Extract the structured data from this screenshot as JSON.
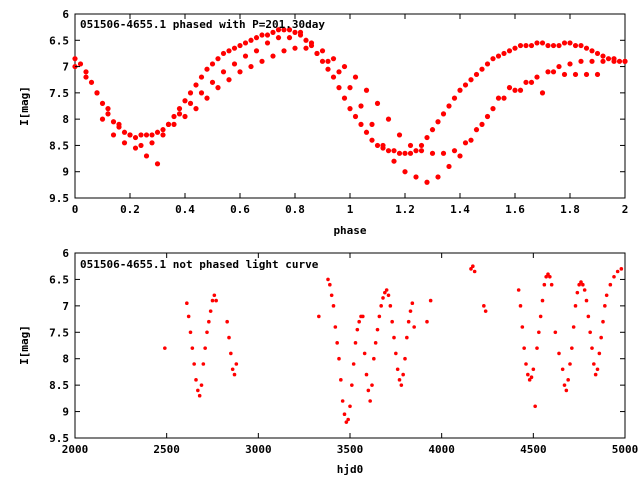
{
  "chart_data": [
    {
      "type": "scatter",
      "title": "051506-4655.1 phased with P=201.30day",
      "xlabel": "phase",
      "ylabel": "I[mag]",
      "xlim": [
        0,
        2
      ],
      "ylim": [
        9.5,
        6
      ],
      "y_inverted": true,
      "xticks": [
        "0",
        "0.2",
        "0.4",
        "0.6",
        "0.8",
        "1",
        "1.2",
        "1.4",
        "1.6",
        "1.8",
        "2"
      ],
      "xtick_values": [
        0,
        0.2,
        0.4,
        0.6,
        0.8,
        1,
        1.2,
        1.4,
        1.6,
        1.8,
        2
      ],
      "yticks": [
        "6",
        "6.5",
        "7",
        "7.5",
        "8",
        "8.5",
        "9",
        "9.5"
      ],
      "ytick_values": [
        6,
        6.5,
        7,
        7.5,
        8,
        8.5,
        9,
        9.5
      ],
      "marker_color": "#ff0000",
      "series": [
        {
          "x": [
            0.0,
            0.02,
            0.04,
            0.06,
            0.08,
            0.1,
            0.12,
            0.14,
            0.16,
            0.18,
            0.2,
            0.22,
            0.24,
            0.26,
            0.28,
            0.3,
            0.32,
            0.34,
            0.36,
            0.38,
            0.4,
            0.42,
            0.44,
            0.46,
            0.48,
            0.5,
            0.52,
            0.54,
            0.56,
            0.58,
            0.6,
            0.62,
            0.64,
            0.66,
            0.68,
            0.7,
            0.72,
            0.74,
            0.76,
            0.78,
            0.8,
            0.82,
            0.84,
            0.86,
            0.88,
            0.9,
            0.92,
            0.94,
            0.96,
            0.98,
            1.0,
            1.02,
            1.04,
            1.06,
            1.08,
            1.1,
            1.12,
            1.14,
            1.16,
            1.18,
            1.2,
            1.22,
            1.24,
            1.26,
            1.28,
            1.3,
            1.32,
            1.34,
            1.36,
            1.38,
            1.4,
            1.42,
            1.44,
            1.46,
            1.48,
            1.5,
            1.52,
            1.54,
            1.56,
            1.58,
            1.6,
            1.62,
            1.64,
            1.66,
            1.68,
            1.7,
            1.72,
            1.74,
            1.76,
            1.78,
            1.8,
            1.82,
            1.84,
            1.86,
            1.88,
            1.9,
            1.92,
            1.94,
            1.96,
            1.98,
            2.0
          ],
          "y": [
            6.85,
            6.95,
            7.1,
            7.3,
            7.5,
            7.7,
            7.9,
            8.05,
            8.15,
            8.25,
            8.3,
            8.35,
            8.3,
            8.3,
            8.3,
            8.25,
            8.2,
            8.1,
            7.95,
            7.8,
            7.65,
            7.5,
            7.35,
            7.2,
            7.05,
            6.95,
            6.85,
            6.75,
            6.7,
            6.65,
            6.6,
            6.55,
            6.5,
            6.45,
            6.4,
            6.4,
            6.35,
            6.3,
            6.3,
            6.3,
            6.35,
            6.4,
            6.5,
            6.6,
            6.75,
            6.9,
            7.05,
            7.2,
            7.4,
            7.6,
            7.8,
            7.95,
            8.1,
            8.25,
            8.4,
            8.5,
            8.55,
            8.6,
            8.6,
            8.65,
            8.65,
            8.65,
            8.6,
            8.5,
            8.35,
            8.2,
            8.05,
            7.9,
            7.75,
            7.6,
            7.45,
            7.35,
            7.25,
            7.15,
            7.05,
            6.95,
            6.85,
            6.8,
            6.75,
            6.7,
            6.65,
            6.6,
            6.6,
            6.6,
            6.55,
            6.55,
            6.6,
            6.6,
            6.6,
            6.55,
            6.55,
            6.6,
            6.6,
            6.65,
            6.7,
            6.75,
            6.8,
            6.85,
            6.85,
            6.9,
            6.9
          ]
        },
        {
          "x": [
            0.0,
            0.04,
            0.08,
            0.12,
            0.16,
            0.2,
            0.24,
            0.28,
            0.32,
            0.36,
            0.4,
            0.44,
            0.48,
            0.52,
            0.56,
            0.6,
            0.64,
            0.68,
            0.72,
            0.76,
            0.8,
            0.84,
            0.88,
            0.92,
            0.96,
            1.0,
            1.04,
            1.08,
            1.12,
            1.16,
            1.2,
            1.24,
            1.28,
            1.32,
            1.36,
            1.4,
            1.44,
            1.48,
            1.52,
            1.56,
            1.6,
            1.64,
            1.68,
            1.72,
            1.76,
            1.8,
            1.84,
            1.88,
            1.92,
            1.96,
            2.0
          ],
          "y": [
            7.0,
            7.2,
            7.5,
            7.8,
            8.1,
            8.3,
            8.5,
            8.45,
            8.3,
            8.1,
            7.95,
            7.8,
            7.6,
            7.4,
            7.25,
            7.1,
            7.0,
            6.9,
            6.8,
            6.7,
            6.65,
            6.65,
            6.75,
            6.9,
            7.1,
            7.4,
            7.75,
            8.1,
            8.5,
            8.8,
            9.0,
            9.1,
            9.2,
            9.1,
            8.9,
            8.7,
            8.4,
            8.1,
            7.8,
            7.6,
            7.45,
            7.3,
            7.2,
            7.1,
            7.0,
            6.95,
            6.9,
            6.9,
            6.9,
            6.9,
            6.9
          ]
        },
        {
          "x": [
            0.1,
            0.14,
            0.18,
            0.22,
            0.26,
            0.3,
            0.34,
            0.38,
            0.42,
            0.46,
            0.5,
            0.54,
            0.58,
            0.62,
            0.66,
            0.7,
            0.74,
            0.78,
            0.82,
            0.86,
            0.9,
            0.94,
            0.98,
            1.02,
            1.06,
            1.1,
            1.14,
            1.18,
            1.22,
            1.26,
            1.3,
            1.34,
            1.38,
            1.42,
            1.46,
            1.5,
            1.54,
            1.58,
            1.62,
            1.66,
            1.7,
            1.74,
            1.78,
            1.82,
            1.86,
            1.9
          ],
          "y": [
            8.0,
            8.3,
            8.45,
            8.55,
            8.7,
            8.85,
            8.1,
            7.9,
            7.7,
            7.5,
            7.3,
            7.1,
            6.95,
            6.8,
            6.7,
            6.55,
            6.45,
            6.45,
            6.35,
            6.55,
            6.7,
            6.85,
            7.0,
            7.2,
            7.45,
            7.7,
            8.0,
            8.3,
            8.5,
            8.6,
            8.65,
            8.65,
            8.6,
            8.45,
            8.2,
            7.95,
            7.6,
            7.4,
            7.45,
            7.3,
            7.5,
            7.1,
            7.15,
            7.15,
            7.15,
            7.15
          ]
        }
      ]
    },
    {
      "type": "scatter",
      "title": "051506-4655.1 not phased light curve",
      "xlabel": "hjd0",
      "ylabel": "I[mag]",
      "xlim": [
        2000,
        5000
      ],
      "ylim": [
        9.5,
        6
      ],
      "y_inverted": true,
      "xticks": [
        "2000",
        "2500",
        "3000",
        "3500",
        "4000",
        "4500",
        "5000"
      ],
      "xtick_values": [
        2000,
        2500,
        3000,
        3500,
        4000,
        4500,
        5000
      ],
      "yticks": [
        "6",
        "6.5",
        "7",
        "7.5",
        "8",
        "8.5",
        "9",
        "9.5"
      ],
      "ytick_values": [
        6,
        6.5,
        7,
        7.5,
        8,
        8.5,
        9,
        9.5
      ],
      "marker_color": "#ff0000",
      "series": [
        {
          "x": [
            2490,
            2610,
            2620,
            2630,
            2640,
            2650,
            2660,
            2670,
            2680,
            2690,
            2700,
            2710,
            2720,
            2730,
            2740,
            2750,
            2760,
            2770,
            2830,
            2840,
            2850,
            2860,
            2870,
            2880,
            3330,
            3380,
            3390,
            3400,
            3410,
            3420,
            3430,
            3440,
            3450,
            3460,
            3470,
            3480,
            3490,
            3500,
            3510,
            3520,
            3530,
            3540,
            3550,
            3560,
            3570,
            3580,
            3590,
            3600,
            3610,
            3620,
            3630,
            3640,
            3650,
            3660,
            3670,
            3680,
            3690,
            3700,
            3710,
            3720,
            3730,
            3740,
            3750,
            3760,
            3770,
            3780,
            3790,
            3800,
            3810,
            3820,
            3830,
            3840,
            3850,
            3920,
            3940,
            4160,
            4170,
            4180,
            4230,
            4240,
            4420,
            4430,
            4440,
            4450,
            4460,
            4470,
            4480,
            4490,
            4500,
            4510,
            4520,
            4530,
            4540,
            4550,
            4560,
            4570,
            4580,
            4590,
            4600,
            4620,
            4640,
            4660,
            4670,
            4680,
            4690,
            4700,
            4710,
            4720,
            4730,
            4740,
            4750,
            4760,
            4770,
            4780,
            4790,
            4800,
            4810,
            4820,
            4830,
            4840,
            4850,
            4860,
            4870,
            4880,
            4890,
            4900,
            4920,
            4940,
            4960,
            4980
          ],
          "y": [
            7.8,
            6.95,
            7.2,
            7.5,
            7.8,
            8.1,
            8.4,
            8.6,
            8.7,
            8.5,
            8.1,
            7.8,
            7.5,
            7.3,
            7.1,
            6.9,
            6.8,
            6.9,
            7.3,
            7.6,
            7.9,
            8.2,
            8.3,
            8.1,
            7.2,
            6.5,
            6.6,
            6.8,
            7.0,
            7.4,
            7.7,
            8.0,
            8.4,
            8.8,
            9.05,
            9.2,
            9.15,
            8.9,
            8.5,
            8.1,
            7.7,
            7.45,
            7.3,
            7.2,
            7.2,
            7.9,
            8.3,
            8.6,
            8.8,
            8.5,
            8.0,
            7.7,
            7.45,
            7.2,
            7.0,
            6.85,
            6.75,
            6.7,
            6.8,
            7.0,
            7.3,
            7.6,
            7.9,
            8.2,
            8.4,
            8.5,
            8.3,
            8.0,
            7.6,
            7.3,
            7.1,
            6.95,
            7.4,
            7.3,
            6.9,
            6.3,
            6.25,
            6.35,
            7.0,
            7.1,
            6.7,
            7.0,
            7.4,
            7.8,
            8.1,
            8.3,
            8.4,
            8.35,
            8.2,
            8.9,
            7.8,
            7.5,
            7.2,
            6.9,
            6.6,
            6.45,
            6.4,
            6.45,
            6.6,
            7.5,
            7.9,
            8.2,
            8.5,
            8.6,
            8.4,
            8.1,
            7.8,
            7.4,
            7.0,
            6.75,
            6.6,
            6.55,
            6.6,
            6.7,
            6.9,
            7.2,
            7.5,
            7.8,
            8.1,
            8.3,
            8.2,
            7.9,
            7.6,
            7.3,
            7.0,
            6.8,
            6.6,
            6.45,
            6.35,
            6.3
          ]
        }
      ]
    }
  ]
}
